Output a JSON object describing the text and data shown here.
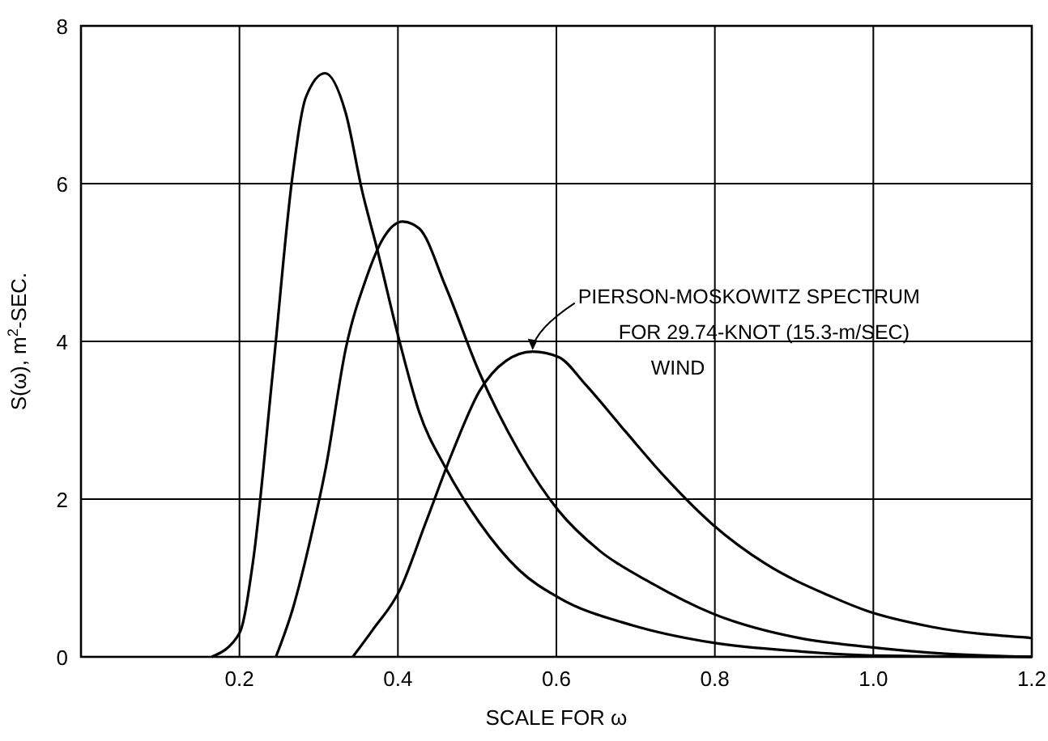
{
  "chart_data": {
    "type": "line",
    "xlabel": "SCALE FOR ω",
    "ylabel": "S(ω), m$^{2}$-SEC.",
    "xlim": [
      0,
      1.2
    ],
    "ylim": [
      0,
      8
    ],
    "xticks": [
      0.2,
      0.4,
      0.6,
      0.8,
      {
        "value": 1,
        "label": "1.0"
      },
      1.2
    ],
    "yticks": [
      0,
      2,
      4,
      6,
      8
    ],
    "grid": true,
    "marker": "none",
    "line_style": "solid",
    "series": [
      {
        "color": "#000000",
        "x": [
          0.165,
          0.2,
          0.217,
          0.242,
          0.267,
          0.284,
          0.308,
          0.334,
          0.355,
          0.373,
          0.402,
          0.427,
          0.46,
          0.503,
          0.553,
          0.603,
          0.696,
          0.797,
          0.906,
          0.99,
          1.2
        ],
        "values": [
          0,
          0.3,
          1.2,
          3.6,
          6.1,
          7.1,
          7.4,
          6.9,
          5.9,
          5.2,
          4,
          3.1,
          2.4,
          1.7,
          1.1,
          0.75,
          0.4,
          0.18,
          0.07,
          0.02,
          0
        ]
      },
      {
        "color": "#000000",
        "x": [
          0.246,
          0.267,
          0.292,
          0.309,
          0.334,
          0.36,
          0.381,
          0.406,
          0.427,
          0.46,
          0.503,
          0.553,
          0.603,
          0.654,
          0.721,
          0.797,
          0.906,
          0.99,
          1.091,
          1.2
        ],
        "values": [
          0,
          0.6,
          1.6,
          2.4,
          3.9,
          4.8,
          5.3,
          5.52,
          5.43,
          4.7,
          3.6,
          2.6,
          1.85,
          1.35,
          0.93,
          0.55,
          0.24,
          0.13,
          0.04,
          0
        ]
      },
      {
        "color": "#000000",
        "x": [
          0.343,
          0.368,
          0.402,
          0.435,
          0.469,
          0.503,
          0.536,
          0.57,
          0.603,
          0.637,
          0.687,
          0.738,
          0.797,
          0.864,
          0.948,
          0.99,
          1.074,
          1.2
        ],
        "values": [
          0,
          0.34,
          0.84,
          1.7,
          2.6,
          3.37,
          3.75,
          3.87,
          3.8,
          3.45,
          2.86,
          2.27,
          1.68,
          1.18,
          0.76,
          0.59,
          0.38,
          0.24
        ]
      }
    ],
    "annotations": [
      {
        "text": "PIERSON-MOSKOWITZ SPECTRUM\nFOR 29.74-KNOT (15.3-m/SEC)\nWIND",
        "x": 0.57,
        "y": 3.87
      }
    ]
  }
}
